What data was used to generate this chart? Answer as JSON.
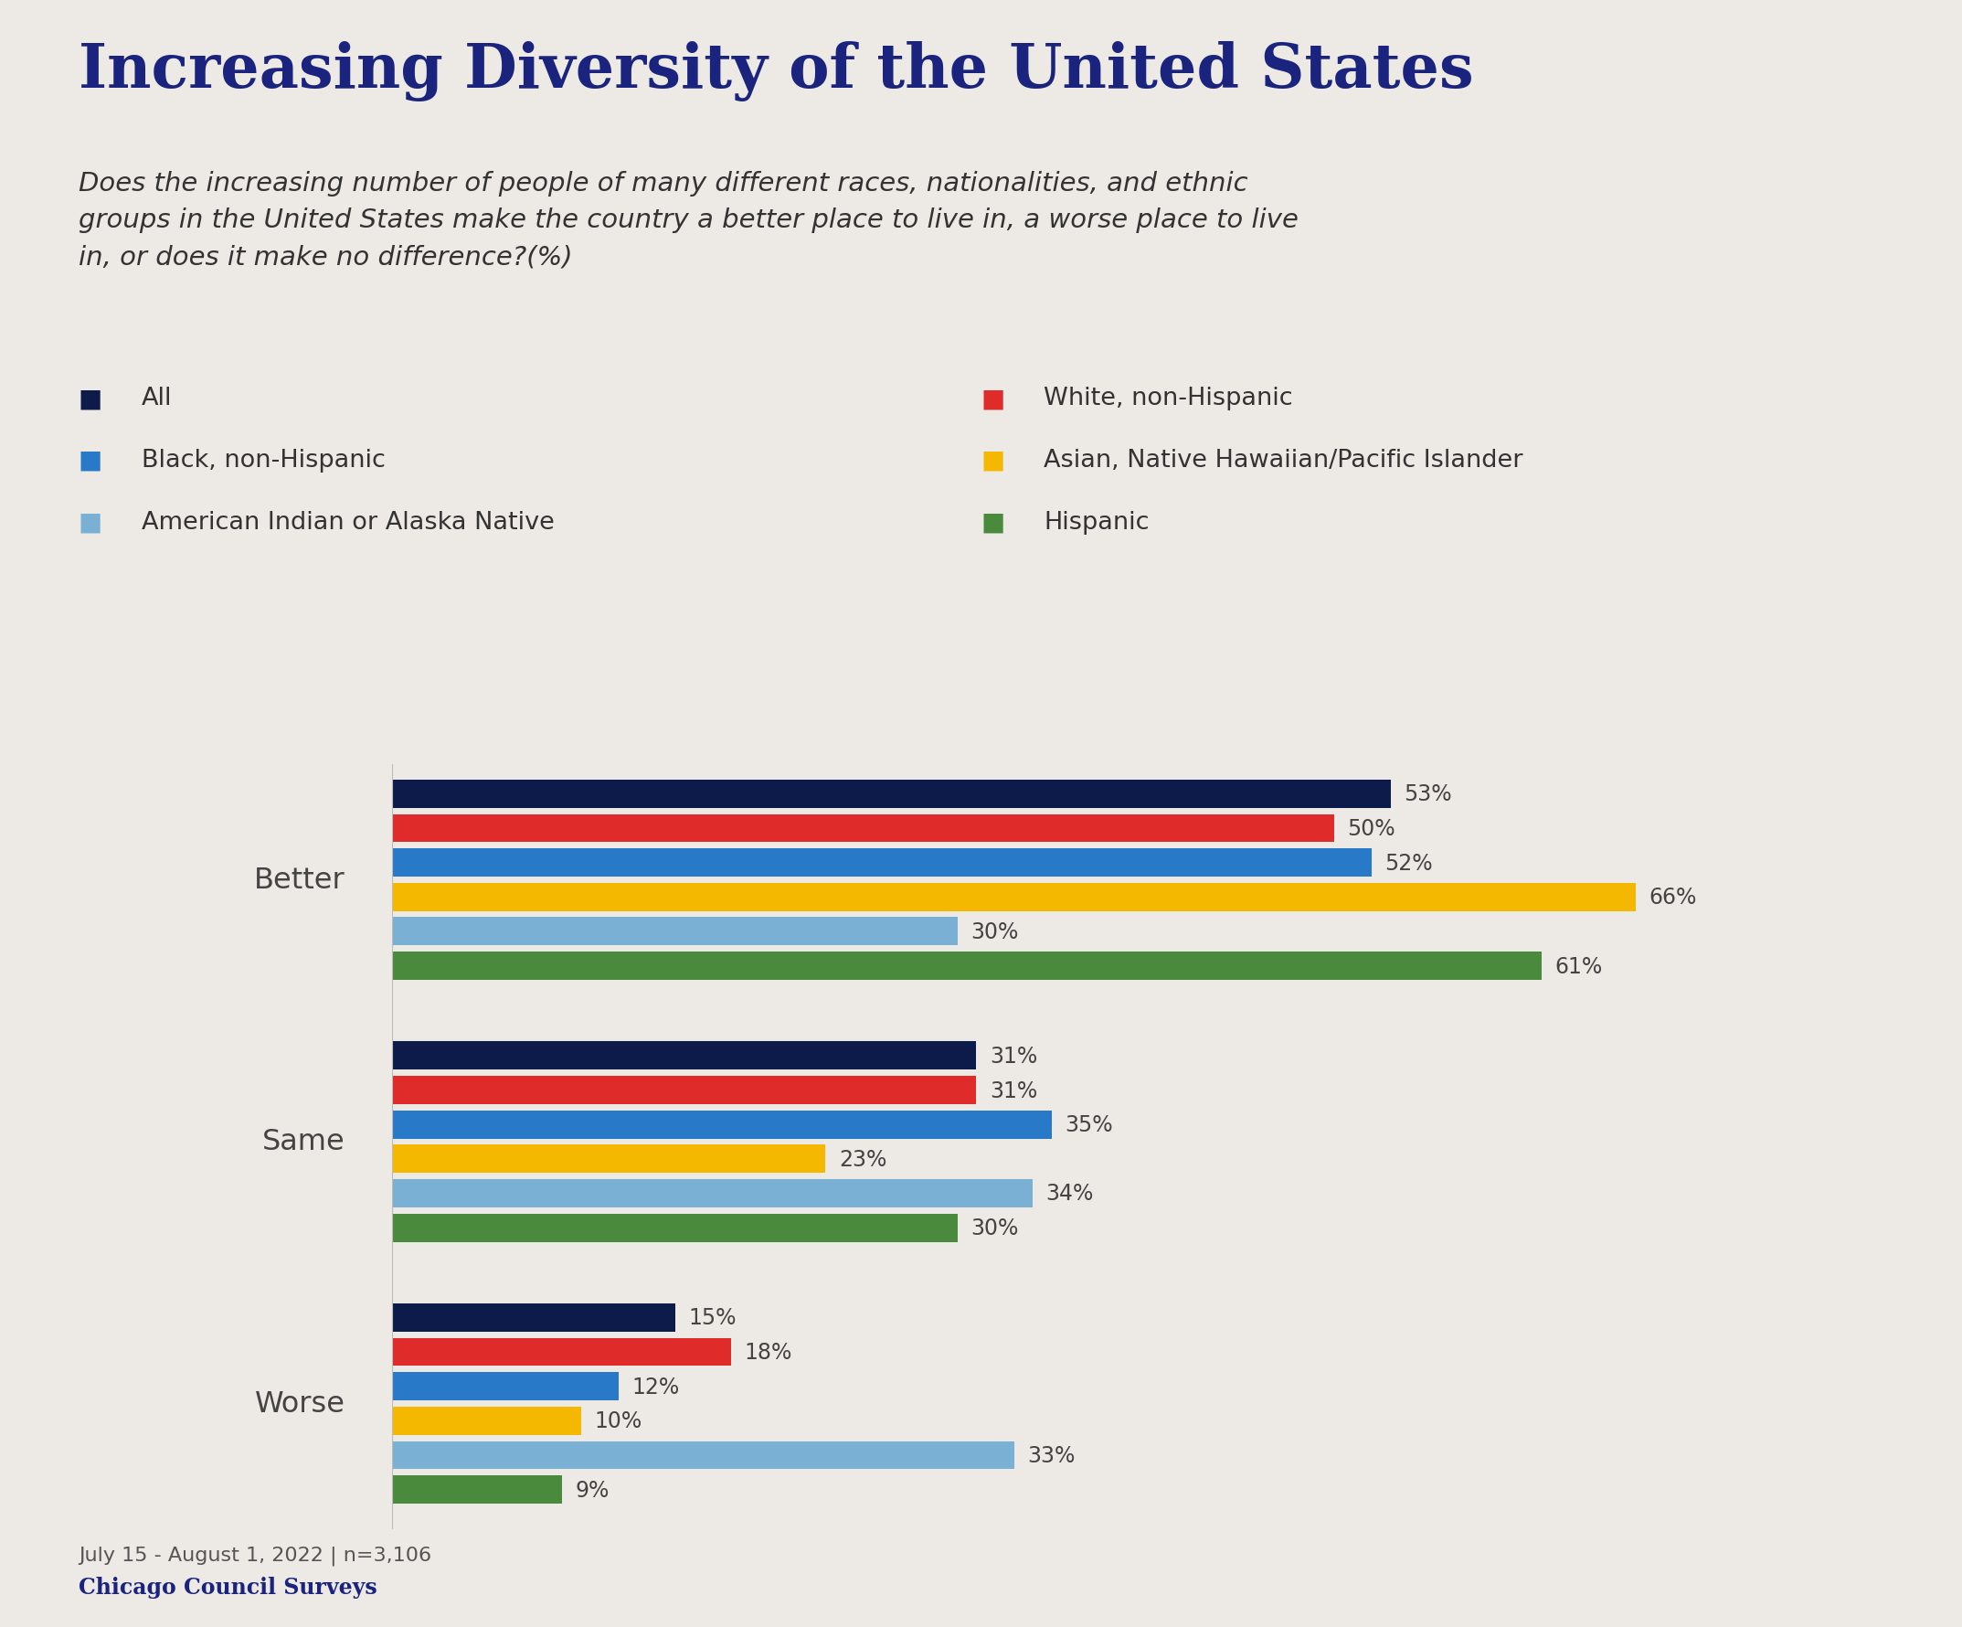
{
  "title": "Increasing Diversity of the United States",
  "subtitle": "Does the increasing number of people of many different races, nationalities, and ethnic\ngroups in the United States make the country a better place to live in, a worse place to live\nin, or does it make no difference?(%)",
  "categories": [
    "Better",
    "Same",
    "Worse"
  ],
  "groups": [
    "All",
    "White, non-Hispanic",
    "Black, non-Hispanic",
    "Asian, Native Hawaiian/Pacific Islander",
    "American Indian or Alaska Native",
    "Hispanic"
  ],
  "colors": [
    "#0d1b4b",
    "#e02b2b",
    "#2979c9",
    "#f5b800",
    "#7ab0d4",
    "#4a8a3c"
  ],
  "data": {
    "Better": [
      53,
      50,
      52,
      66,
      30,
      61
    ],
    "Same": [
      31,
      31,
      35,
      23,
      34,
      30
    ],
    "Worse": [
      15,
      18,
      12,
      10,
      33,
      9
    ]
  },
  "background_color": "#ede9e4",
  "title_color": "#1a237e",
  "subtitle_color": "#333333",
  "label_color": "#444444",
  "footer_text": "July 15 - August 1, 2022 | n=3,106",
  "footer_brand": "Chicago Council Surveys",
  "xlim": [
    0,
    75
  ]
}
